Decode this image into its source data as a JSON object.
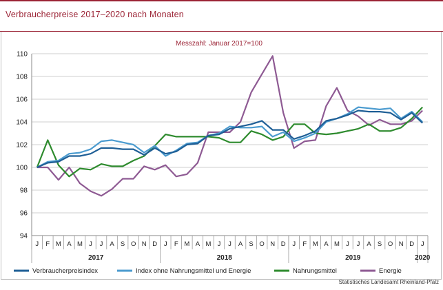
{
  "title": "Verbraucherpreise 2017–2020 nach Monaten",
  "source": "Statistisches Landesamt Rheinland-Pfalz",
  "colors": {
    "accent": "#9b2335",
    "Verbraucherpreisindex": "#1f5f96",
    "Index ohne Nahrungsmittel und Energie": "#4b9bcf",
    "Nahrungsmittel": "#2e8b2e",
    "Energie": "#8e5a93"
  },
  "chart_data": {
    "type": "line",
    "subtitle": "Messzahl: Januar 2017=100",
    "month_labels": [
      "J",
      "F",
      "M",
      "A",
      "M",
      "J",
      "J",
      "A",
      "S",
      "O",
      "N",
      "D",
      "J",
      "F",
      "M",
      "A",
      "M",
      "J",
      "J",
      "A",
      "S",
      "O",
      "N",
      "D",
      "J",
      "F",
      "M",
      "A",
      "M",
      "J",
      "J",
      "A",
      "S",
      "O",
      "N",
      "D",
      "J"
    ],
    "year_labels": [
      {
        "label": "2017",
        "start": 0,
        "end": 11
      },
      {
        "label": "2018",
        "start": 12,
        "end": 23
      },
      {
        "label": "2019",
        "start": 24,
        "end": 35
      },
      {
        "label": "2020",
        "start": 36,
        "end": 36
      }
    ],
    "ylim": [
      94,
      110
    ],
    "yticks": [
      94,
      96,
      98,
      100,
      102,
      104,
      106,
      108,
      110
    ],
    "grid": true,
    "legend_position": "bottom",
    "series": [
      {
        "name": "Verbraucherpreisindex",
        "values": [
          100.0,
          100.4,
          100.5,
          101.0,
          101.0,
          101.2,
          101.7,
          101.7,
          101.6,
          101.6,
          101.1,
          101.7,
          101.2,
          101.4,
          102.0,
          102.1,
          102.8,
          102.9,
          103.4,
          103.6,
          103.8,
          104.1,
          103.3,
          103.3,
          102.5,
          102.8,
          103.2,
          104.1,
          104.3,
          104.6,
          105.0,
          104.9,
          104.9,
          104.8,
          104.2,
          104.8,
          103.9
        ]
      },
      {
        "name": "Index ohne Nahrungsmittel und Energie",
        "values": [
          100.0,
          100.5,
          100.6,
          101.2,
          101.3,
          101.6,
          102.3,
          102.4,
          102.2,
          102.0,
          101.3,
          101.9,
          101.0,
          101.5,
          102.1,
          102.2,
          102.8,
          103.0,
          103.6,
          103.5,
          103.5,
          103.6,
          102.7,
          103.1,
          102.3,
          102.6,
          103.0,
          104.0,
          104.3,
          104.7,
          105.3,
          105.2,
          105.1,
          105.2,
          104.3,
          104.9,
          104.0
        ]
      },
      {
        "name": "Nahrungsmittel",
        "values": [
          100.0,
          102.4,
          100.2,
          99.2,
          99.9,
          99.8,
          100.3,
          100.1,
          100.1,
          100.6,
          101.0,
          101.9,
          102.9,
          102.7,
          102.7,
          102.7,
          102.7,
          102.6,
          102.2,
          102.2,
          103.2,
          102.9,
          102.4,
          102.7,
          103.8,
          103.8,
          103.0,
          102.9,
          103.0,
          103.2,
          103.4,
          103.8,
          103.2,
          103.2,
          103.5,
          104.3,
          105.3
        ]
      },
      {
        "name": "Energie",
        "values": [
          100.0,
          100.0,
          98.9,
          100.0,
          98.6,
          97.9,
          97.5,
          98.1,
          99.0,
          99.0,
          100.1,
          99.8,
          100.2,
          99.2,
          99.4,
          100.4,
          103.1,
          103.1,
          103.1,
          104.0,
          106.6,
          108.2,
          109.8,
          104.8,
          101.7,
          102.3,
          102.4,
          105.4,
          107.0,
          105.0,
          104.5,
          103.7,
          104.2,
          103.8,
          103.8,
          104.1,
          105.0
        ]
      }
    ]
  }
}
